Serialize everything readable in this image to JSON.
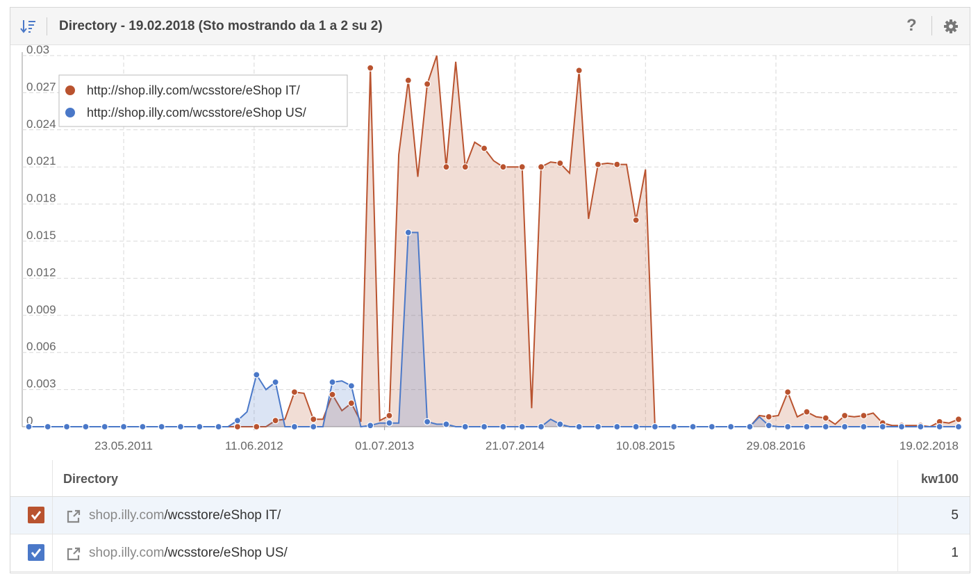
{
  "header": {
    "title": "Directory - 19.02.2018 (Sto mostrando da 1 a 2 su 2)"
  },
  "chart_data": {
    "type": "line",
    "x": [
      "16.08.2010",
      "13.09.2010",
      "11.10.2010",
      "08.11.2010",
      "06.12.2010",
      "03.01.2011",
      "31.01.2011",
      "28.02.2011",
      "28.03.2011",
      "25.04.2011",
      "23.05.2011",
      "20.06.2011",
      "18.07.2011",
      "15.08.2011",
      "12.09.2011",
      "10.10.2011",
      "07.11.2011",
      "05.12.2011",
      "02.01.2012",
      "30.01.2012",
      "27.02.2012",
      "26.03.2012",
      "23.04.2012",
      "21.05.2012",
      "18.06.2012",
      "16.07.2012",
      "13.08.2012",
      "10.09.2012",
      "08.10.2012",
      "05.11.2012",
      "03.12.2012",
      "31.12.2012",
      "28.01.2013",
      "25.02.2013",
      "25.03.2013",
      "22.04.2013",
      "20.05.2013",
      "17.06.2013",
      "15.07.2013",
      "12.08.2013",
      "09.09.2013",
      "07.10.2013",
      "04.11.2013",
      "02.12.2013",
      "30.12.2013",
      "27.01.2014",
      "24.02.2014",
      "24.03.2014",
      "21.04.2014",
      "19.05.2014",
      "16.06.2014",
      "14.07.2014",
      "11.08.2014",
      "08.09.2014",
      "06.10.2014",
      "03.11.2014",
      "01.12.2014",
      "29.12.2014",
      "26.01.2015",
      "23.02.2015",
      "23.03.2015",
      "20.04.2015",
      "18.05.2015",
      "15.06.2015",
      "13.07.2015",
      "10.08.2015",
      "07.09.2015",
      "05.10.2015",
      "02.11.2015",
      "30.11.2015",
      "28.12.2015",
      "25.01.2016",
      "22.02.2016",
      "21.03.2016",
      "18.04.2016",
      "16.05.2016",
      "13.06.2016",
      "11.07.2016",
      "08.08.2016",
      "05.09.2016",
      "03.10.2016",
      "31.10.2016",
      "28.11.2016",
      "26.12.2016",
      "23.01.2017",
      "20.02.2017",
      "20.03.2017",
      "17.04.2017",
      "15.05.2017",
      "12.06.2017",
      "10.07.2017",
      "07.08.2017",
      "04.09.2017",
      "02.10.2017",
      "30.10.2017",
      "27.11.2017",
      "25.12.2017",
      "22.01.2018",
      "19.02.2018"
    ],
    "series": [
      {
        "name": "http://shop.illy.com/wcsstore/eShop IT/",
        "color": "#b9532f",
        "values": [
          0,
          0,
          0,
          0,
          0,
          0,
          0,
          0,
          0,
          0,
          0,
          0,
          0,
          0,
          0,
          0,
          0,
          0,
          0,
          0,
          0,
          0,
          0,
          0,
          0,
          0,
          0.0005,
          0.0006,
          0.0028,
          0.0027,
          0.0006,
          0.0006,
          0.0026,
          0.0013,
          0.0019,
          0.0004,
          0.029,
          0.0005,
          0.0009,
          0.022,
          0.028,
          0.0202,
          0.0277,
          0.03,
          0.021,
          0.0295,
          0.021,
          0.023,
          0.0225,
          0.0215,
          0.021,
          0.021,
          0.021,
          0.0015,
          0.021,
          0.0214,
          0.0213,
          0.0205,
          0.0288,
          0.0168,
          0.0212,
          0.0213,
          0.0212,
          0.0212,
          0.0167,
          0.0208,
          0,
          0,
          0,
          0,
          0,
          0,
          0,
          0,
          0,
          0,
          0,
          0.0009,
          0.0008,
          0.0009,
          0.0028,
          0.0008,
          0.0012,
          0.0008,
          0.0007,
          0.0002,
          0.0009,
          0.0008,
          0.0009,
          0.0011,
          0.0003,
          0.0001,
          0.0001,
          0.0001,
          0.0001,
          0,
          0.0004,
          0.0003,
          0.0006
        ]
      },
      {
        "name": "http://shop.illy.com/wcsstore/eShop US/",
        "color": "#4a78c8",
        "values": [
          0,
          0,
          0,
          0,
          0,
          0,
          0,
          0,
          0,
          0,
          0,
          0,
          0,
          0,
          0,
          0,
          0,
          0,
          0,
          0,
          0,
          0,
          0.0005,
          0.0012,
          0.0042,
          0.003,
          0.0036,
          0,
          0,
          0,
          0,
          0,
          0.0036,
          0.0037,
          0.0033,
          0,
          0.0001,
          0.0003,
          0.0003,
          0.0003,
          0.0157,
          0.0157,
          0.0004,
          0.0002,
          0.0002,
          0,
          0,
          0,
          0,
          0,
          0,
          0,
          0,
          0,
          0,
          0.0006,
          0.0002,
          0,
          0,
          0,
          0,
          0,
          0,
          0,
          0,
          0,
          0,
          0,
          0,
          0,
          0,
          0,
          0,
          0,
          0,
          0,
          0,
          0.0008,
          0.0001,
          0,
          0,
          0,
          0,
          0,
          0,
          0,
          0,
          0,
          0,
          0,
          0,
          0,
          0,
          0,
          0,
          0,
          0,
          0,
          0
        ]
      }
    ],
    "xlim": [
      "13.08.2010",
      "19.02.2018"
    ],
    "xticks": [
      "23.05.2011",
      "11.06.2012",
      "01.07.2013",
      "21.07.2014",
      "10.08.2015",
      "29.08.2016",
      "19.02.2018"
    ],
    "ylim": [
      0,
      0.03
    ],
    "yticks": [
      0,
      0.003,
      0.006,
      0.009,
      0.012,
      0.015,
      0.018,
      0.021,
      0.024,
      0.027,
      0.03
    ],
    "grid": true,
    "legend": "top-left"
  },
  "table": {
    "columns": [
      "Directory",
      "kw100"
    ],
    "rows": [
      {
        "domain": "shop.illy.com",
        "path": "/wcsstore/eShop IT/",
        "kw100": 5
      },
      {
        "domain": "shop.illy.com",
        "path": "/wcsstore/eShop US/",
        "kw100": 1
      }
    ]
  }
}
